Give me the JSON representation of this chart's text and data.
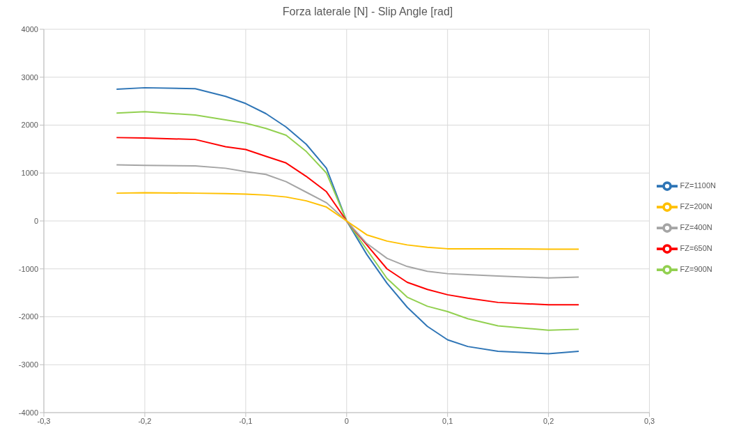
{
  "chart_data": {
    "type": "line",
    "title": "Forza laterale [N] - Slip Angle [rad]",
    "x": [
      -0.228,
      -0.2,
      -0.15,
      -0.12,
      -0.1,
      -0.08,
      -0.06,
      -0.04,
      -0.02,
      0,
      0.02,
      0.04,
      0.06,
      0.08,
      0.1,
      0.12,
      0.15,
      0.2,
      0.23
    ],
    "series": [
      {
        "name": "FZ=1100N",
        "color": "#2e75b6",
        "values": [
          2750,
          2780,
          2760,
          2600,
          2450,
          2240,
          1960,
          1600,
          1100,
          0,
          -700,
          -1300,
          -1800,
          -2200,
          -2480,
          -2620,
          -2720,
          -2770,
          -2720
        ]
      },
      {
        "name": "FZ=900N",
        "color": "#92d050",
        "values": [
          2250,
          2280,
          2210,
          2110,
          2040,
          1930,
          1790,
          1450,
          1000,
          0,
          -600,
          -1200,
          -1590,
          -1780,
          -1890,
          -2040,
          -2190,
          -2280,
          -2260
        ]
      },
      {
        "name": "FZ=650N",
        "color": "#ff0000",
        "values": [
          1740,
          1730,
          1700,
          1550,
          1490,
          1350,
          1210,
          930,
          610,
          0,
          -500,
          -1000,
          -1280,
          -1430,
          -1540,
          -1610,
          -1700,
          -1750,
          -1750
        ]
      },
      {
        "name": "FZ=400N",
        "color": "#a5a5a5",
        "values": [
          1170,
          1160,
          1150,
          1100,
          1030,
          970,
          820,
          600,
          380,
          0,
          -470,
          -780,
          -950,
          -1050,
          -1100,
          -1120,
          -1150,
          -1190,
          -1170
        ]
      },
      {
        "name": "FZ=200N",
        "color": "#ffc000",
        "values": [
          580,
          590,
          580,
          570,
          560,
          540,
          500,
          420,
          290,
          0,
          -290,
          -420,
          -500,
          -550,
          -580,
          -580,
          -580,
          -590,
          -590
        ]
      }
    ],
    "xlim": [
      -0.3,
      0.3
    ],
    "xticks": [
      {
        "value": -0.3,
        "label": "-0,3"
      },
      {
        "value": -0.2,
        "label": "-0,2"
      },
      {
        "value": -0.1,
        "label": "-0,1"
      },
      0,
      {
        "value": 0.1,
        "label": "0,1"
      },
      {
        "value": 0.2,
        "label": "0,2"
      },
      {
        "value": 0.3,
        "label": "0,3"
      }
    ],
    "ylim": [
      -4000,
      4000
    ],
    "yticks": [
      -4000,
      -3000,
      -2000,
      -1000,
      0,
      1000,
      2000,
      3000,
      4000
    ],
    "grid": true,
    "legend": "right",
    "line_style": "solid"
  }
}
